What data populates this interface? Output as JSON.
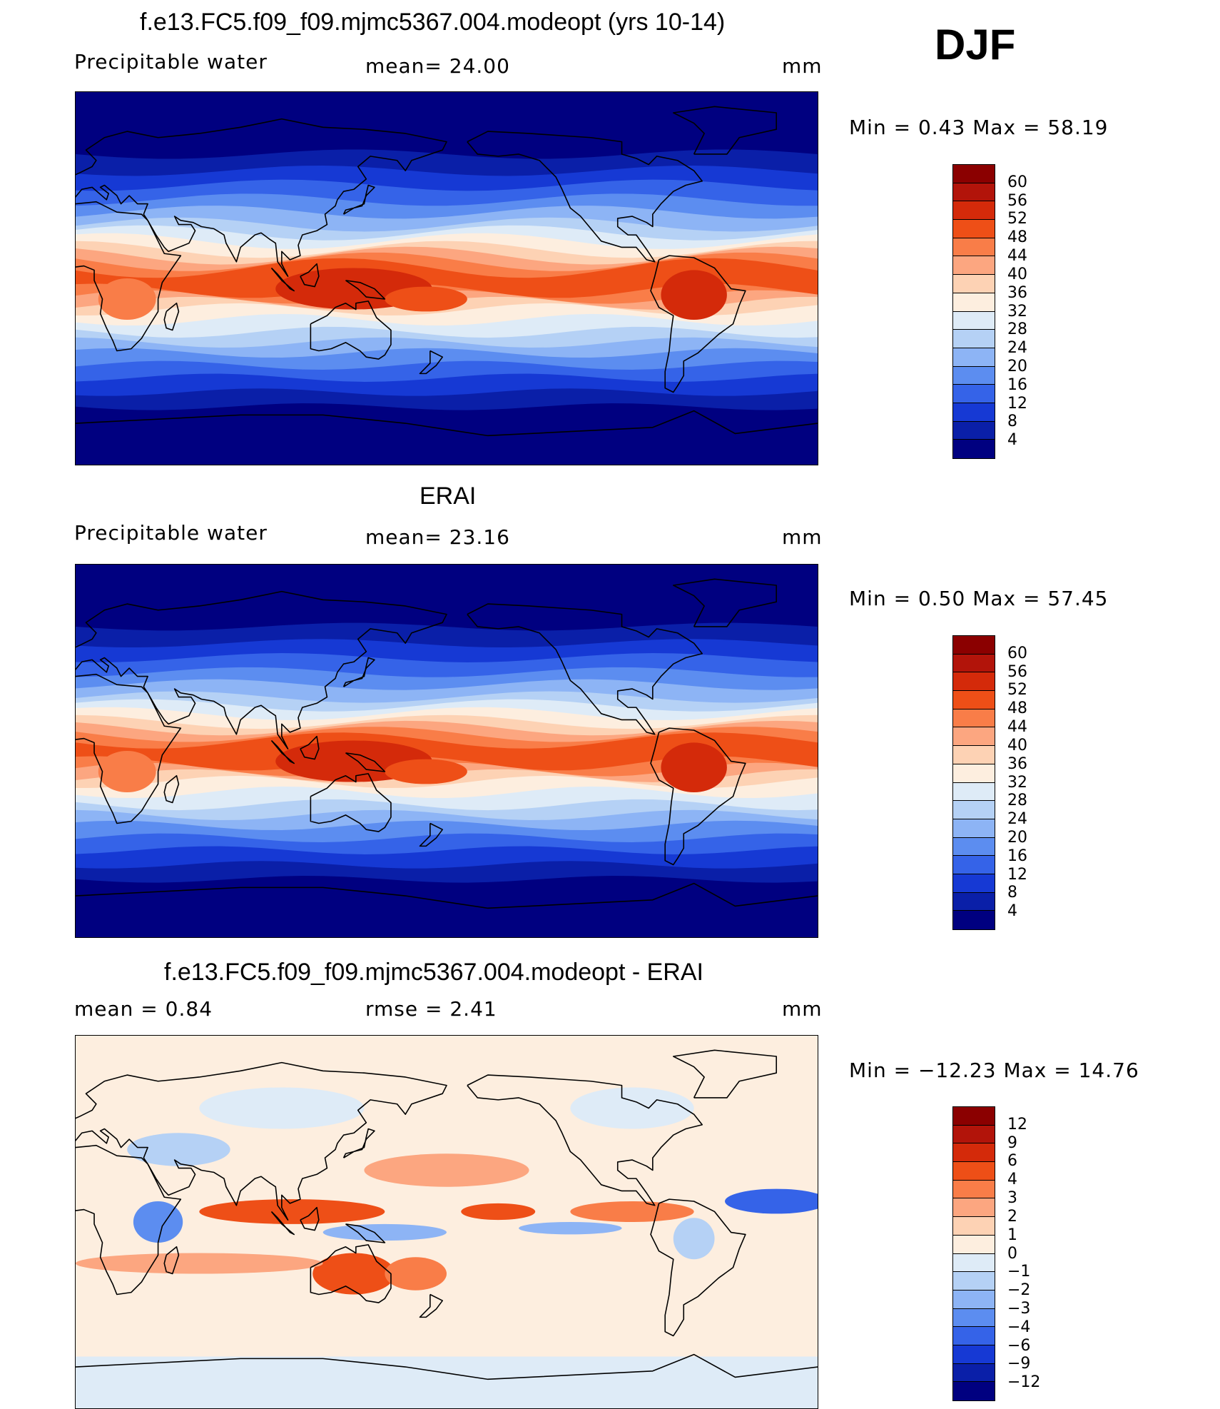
{
  "season": "DJF",
  "panels": [
    {
      "title": "f.e13.FC5.f09_f09.mjmc5367.004.modeopt (yrs 10-14)",
      "left_label": "Precipitable  water",
      "center_label": "mean=   24.00",
      "units": "mm",
      "minmax": "Min  =     0.43  Max  =    58.19",
      "colorbar": {
        "labels": [
          "60",
          "56",
          "52",
          "48",
          "44",
          "40",
          "36",
          "32",
          "28",
          "24",
          "20",
          "16",
          "12",
          "8",
          "4"
        ],
        "colors": [
          "#8b0000",
          "#b2140a",
          "#d42a0a",
          "#ee4f17",
          "#f97d48",
          "#fca680",
          "#fdd2b4",
          "#fdeedf",
          "#deebf7",
          "#b5d1f5",
          "#8db4f5",
          "#5c8df0",
          "#3563e8",
          "#1639d4",
          "#0a1fa8",
          "#000080"
        ]
      },
      "map_kind": "pw_model"
    },
    {
      "title": "ERAI",
      "left_label": "Precipitable  water",
      "center_label": "mean=   23.16",
      "units": "mm",
      "minmax": "Min  =     0.50  Max  =    57.45",
      "colorbar": {
        "labels": [
          "60",
          "56",
          "52",
          "48",
          "44",
          "40",
          "36",
          "32",
          "28",
          "24",
          "20",
          "16",
          "12",
          "8",
          "4"
        ],
        "colors": [
          "#8b0000",
          "#b2140a",
          "#d42a0a",
          "#ee4f17",
          "#f97d48",
          "#fca680",
          "#fdd2b4",
          "#fdeedf",
          "#deebf7",
          "#b5d1f5",
          "#8db4f5",
          "#5c8df0",
          "#3563e8",
          "#1639d4",
          "#0a1fa8",
          "#000080"
        ]
      },
      "map_kind": "pw_obs"
    },
    {
      "title": "f.e13.FC5.f09_f09.mjmc5367.004.modeopt - ERAI",
      "left_label": "mean  =     0.84",
      "center_label": "rmse  =     2.41",
      "units": "mm",
      "minmax": "Min  = −12.23  Max  =    14.76",
      "colorbar": {
        "labels": [
          "12",
          "9",
          "6",
          "4",
          "3",
          "2",
          "1",
          "0",
          "−1",
          "−2",
          "−3",
          "−4",
          "−6",
          "−9",
          "−12"
        ],
        "colors": [
          "#8b0000",
          "#b2140a",
          "#d42a0a",
          "#ee4f17",
          "#f97d48",
          "#fca680",
          "#fdd2b4",
          "#fdeedf",
          "#deebf7",
          "#b5d1f5",
          "#8db4f5",
          "#5c8df0",
          "#3563e8",
          "#1639d4",
          "#0a1fa8",
          "#000080"
        ]
      },
      "map_kind": "diff"
    }
  ]
}
